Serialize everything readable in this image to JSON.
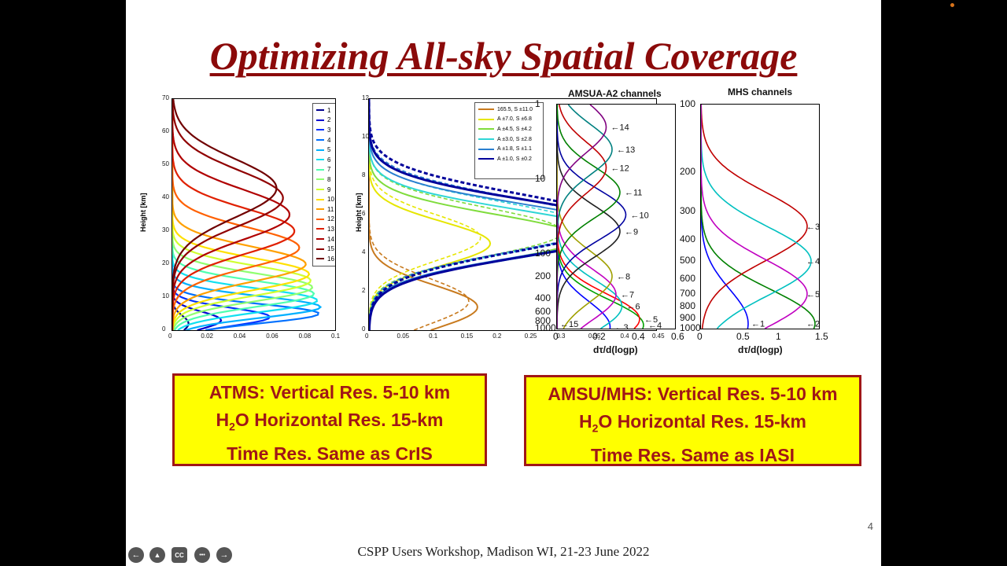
{
  "slide": {
    "title": "Optimizing All-sky Spatial Coverage",
    "page_number": "4",
    "footer": "CSPP Users Workshop, Madison WI, 21-23 June 2022"
  },
  "boxes": {
    "atms": {
      "line1": "ATMS:  Vertical Res. 5-10 km",
      "line2_pre": "H",
      "line2_sub": "2",
      "line2_post": "O Horizontal Res. 15-km",
      "line3": "Time Res. Same as CrIS"
    },
    "amsu": {
      "line1": "AMSU/MHS: Vertical Res. 5-10 km",
      "line2_pre": "H",
      "line2_sub": "2",
      "line2_post": "O Horizontal Res. 15-km",
      "line3": "Time Res. Same as IASI"
    }
  },
  "controls": {
    "prev": "←",
    "pointer": "▲",
    "cc": "CC",
    "more": "•••",
    "next": "→"
  },
  "chart_data": [
    {
      "type": "line",
      "title": "",
      "ylabel": "Height [km]",
      "xlabel": "",
      "xlim": [
        0,
        0.1
      ],
      "ylim": [
        0,
        70
      ],
      "x_ticks": [
        "0",
        "0.02",
        "0.04",
        "0.06",
        "0.08",
        "0.1"
      ],
      "y_ticks": [
        "0",
        "10",
        "20",
        "30",
        "40",
        "50",
        "60",
        "70"
      ],
      "legend": [
        "1",
        "2",
        "3",
        "4",
        "5",
        "6",
        "7",
        "8",
        "9",
        "10",
        "11",
        "12",
        "13",
        "14",
        "15",
        "16"
      ],
      "series_colors": [
        "#00008f",
        "#0000d0",
        "#0030ff",
        "#0070ff",
        "#00b0ff",
        "#10e0f0",
        "#50ffb0",
        "#90ff70",
        "#d0ff30",
        "#ffe000",
        "#ffa000",
        "#ff6000",
        "#e02000",
        "#b00000",
        "#900000",
        "#700000"
      ],
      "series_peaks": [
        {
          "name": "1",
          "peak_height": 2,
          "peak_value": 0.01
        },
        {
          "name": "2",
          "peak_height": 3,
          "peak_value": 0.03
        },
        {
          "name": "3",
          "peak_height": 4,
          "peak_value": 0.06
        },
        {
          "name": "4",
          "peak_height": 5,
          "peak_value": 0.09
        },
        {
          "name": "5",
          "peak_height": 7,
          "peak_value": 0.091
        },
        {
          "name": "6",
          "peak_height": 9,
          "peak_value": 0.089
        },
        {
          "name": "7",
          "peak_height": 11,
          "peak_value": 0.087
        },
        {
          "name": "8",
          "peak_height": 13,
          "peak_value": 0.086
        },
        {
          "name": "9",
          "peak_height": 15,
          "peak_value": 0.085
        },
        {
          "name": "10",
          "peak_height": 17,
          "peak_value": 0.084
        },
        {
          "name": "11",
          "peak_height": 20,
          "peak_value": 0.082
        },
        {
          "name": "12",
          "peak_height": 25,
          "peak_value": 0.078
        },
        {
          "name": "13",
          "peak_height": 30,
          "peak_value": 0.075
        },
        {
          "name": "14",
          "peak_height": 35,
          "peak_value": 0.072
        },
        {
          "name": "15",
          "peak_height": 40,
          "peak_value": 0.068
        },
        {
          "name": "16",
          "peak_height": 43,
          "peak_value": 0.064
        }
      ]
    },
    {
      "type": "line",
      "title": "",
      "ylabel": "Height [km]",
      "xlabel": "",
      "xlim": [
        0,
        0.45
      ],
      "ylim": [
        0,
        12
      ],
      "x_ticks": [
        "0",
        "0.05",
        "0.1",
        "0.15",
        "0.2",
        "0.25",
        "0.3",
        "0.35",
        "0.4",
        "0.45"
      ],
      "y_ticks": [
        "0",
        "2",
        "4",
        "6",
        "8",
        "10",
        "12"
      ],
      "legend": [
        "165.5, S ±11.0",
        "A ±7.0, S ±6.8",
        "A ±4.5, S ±4.2",
        "A ±3.0, S ±2.8",
        "A ±1.8, S ±1.1",
        "A ±1.0, S ±0.2"
      ],
      "series_colors": [
        "#c87a1e",
        "#e6e600",
        "#7fdc3c",
        "#2fd6d6",
        "#2a7fd0",
        "#00009b"
      ],
      "series_peaks": [
        {
          "name": "165.5, S ±11.0",
          "peak_height": 1.2,
          "peak_value": 0.17
        },
        {
          "name": "A ±7.0, S ±6.8",
          "peak_height": 4.5,
          "peak_value": 0.19
        },
        {
          "name": "A ±4.5, S ±4.2",
          "peak_height": 4.8,
          "peak_value": 0.33
        },
        {
          "name": "A ±3.0, S ±2.8",
          "peak_height": 5.0,
          "peak_value": 0.38
        },
        {
          "name": "A ±1.8, S ±1.1",
          "peak_height": 5.2,
          "peak_value": 0.4
        },
        {
          "name": "A ±1.0, S ±0.2",
          "peak_height": 5.3,
          "peak_value": 0.42
        }
      ]
    },
    {
      "type": "line",
      "title": "AMSUA-A2 channels",
      "xlabel": "dτ/d(logp)",
      "ylabel": "",
      "xlim": [
        0,
        0.6
      ],
      "ylim_pressure": [
        1000,
        1
      ],
      "x_ticks": [
        "0",
        "0.2",
        "0.4",
        "0.6"
      ],
      "y_ticks": [
        "1",
        "10",
        "100",
        "200",
        "400",
        "600",
        "800",
        "1000"
      ],
      "channel_labels": [
        "15",
        "3",
        "4",
        "5",
        "6",
        "7",
        "8",
        "9",
        "10",
        "11",
        "12",
        "13",
        "14"
      ],
      "series_colors": [
        "#0000ff",
        "#00a000",
        "#ff0000",
        "#00c0c0",
        "#c000c0",
        "#a0a000",
        "#202020",
        "#0000a0",
        "#008000",
        "#c00000",
        "#008080",
        "#800080"
      ],
      "series_peaks": [
        {
          "name": "3",
          "peak_pressure": 950,
          "peak_value": 0.27
        },
        {
          "name": "4",
          "peak_pressure": 900,
          "peak_value": 0.44
        },
        {
          "name": "5",
          "peak_pressure": 750,
          "peak_value": 0.42
        },
        {
          "name": "6",
          "peak_pressure": 500,
          "peak_value": 0.33
        },
        {
          "name": "7",
          "peak_pressure": 350,
          "peak_value": 0.3
        },
        {
          "name": "8",
          "peak_pressure": 200,
          "peak_value": 0.28
        },
        {
          "name": "9",
          "peak_pressure": 50,
          "peak_value": 0.32
        },
        {
          "name": "10",
          "peak_pressure": 30,
          "peak_value": 0.35
        },
        {
          "name": "11",
          "peak_pressure": 15,
          "peak_value": 0.32
        },
        {
          "name": "12",
          "peak_pressure": 7,
          "peak_value": 0.25
        },
        {
          "name": "13",
          "peak_pressure": 4,
          "peak_value": 0.28
        },
        {
          "name": "14",
          "peak_pressure": 2,
          "peak_value": 0.25
        }
      ]
    },
    {
      "type": "line",
      "title": "MHS channels",
      "xlabel": "dτ/d(logp)",
      "ylabel": "",
      "xlim": [
        0,
        1.5
      ],
      "ylim_pressure": [
        1000,
        100
      ],
      "x_ticks": [
        "0",
        "0.5",
        "1",
        "1.5"
      ],
      "y_ticks": [
        "100",
        "200",
        "300",
        "400",
        "500",
        "600",
        "700",
        "800",
        "900",
        "1000"
      ],
      "channel_labels": [
        "1",
        "2",
        "3",
        "4",
        "5"
      ],
      "series_colors": [
        "#0000ff",
        "#008000",
        "#c00000",
        "#00c0c0",
        "#c000c0"
      ],
      "series_peaks": [
        {
          "name": "1",
          "peak_pressure": 950,
          "peak_value": 0.6
        },
        {
          "name": "2",
          "peak_pressure": 950,
          "peak_value": 1.45
        },
        {
          "name": "3",
          "peak_pressure": 350,
          "peak_value": 1.35
        },
        {
          "name": "4",
          "peak_pressure": 500,
          "peak_value": 1.4
        },
        {
          "name": "5",
          "peak_pressure": 700,
          "peak_value": 1.35
        }
      ]
    }
  ]
}
